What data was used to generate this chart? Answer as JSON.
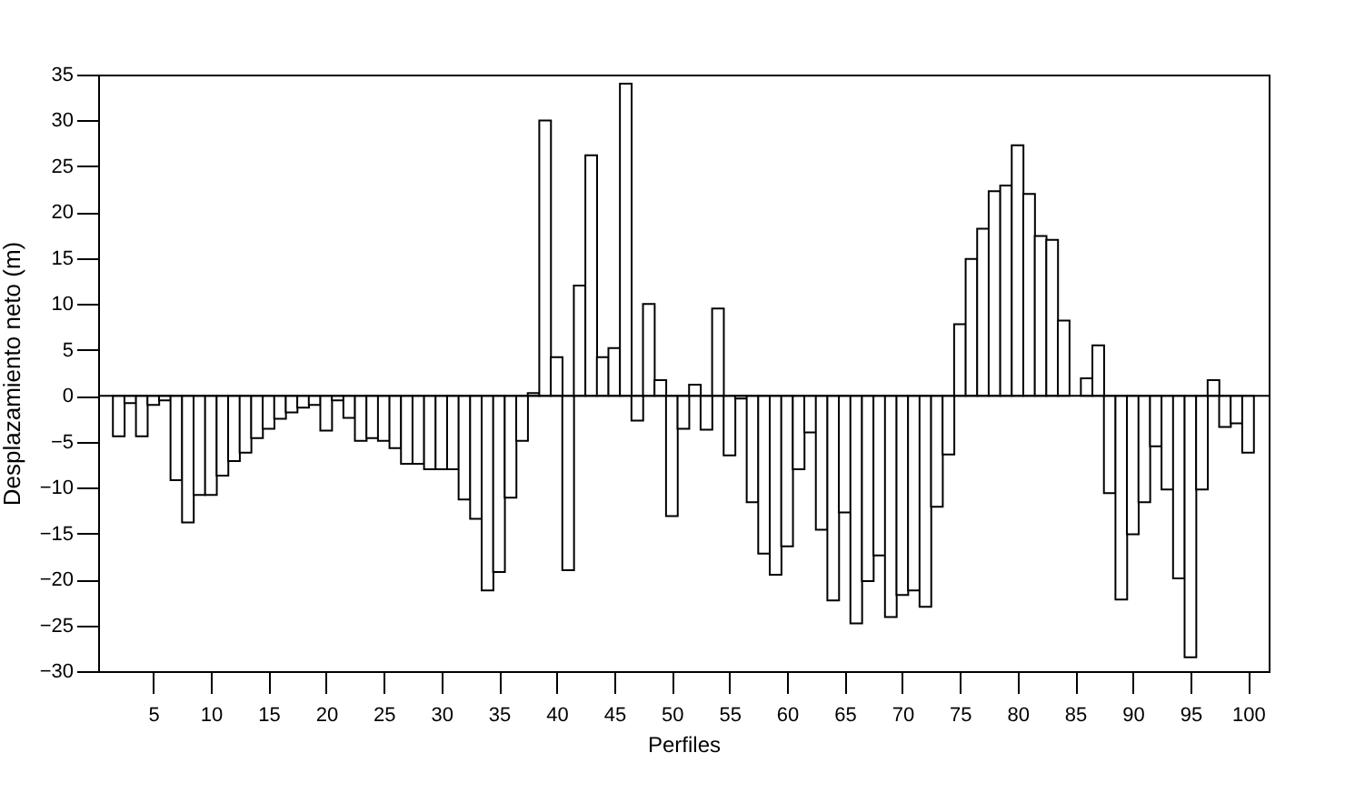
{
  "chart_data": {
    "type": "bar",
    "xlabel": "Perfiles",
    "ylabel": "Desplazamiento neto (m)",
    "x": [
      2,
      3,
      4,
      5,
      6,
      7,
      8,
      9,
      10,
      11,
      12,
      13,
      14,
      15,
      16,
      17,
      18,
      19,
      20,
      21,
      22,
      23,
      24,
      25,
      26,
      27,
      28,
      29,
      30,
      31,
      32,
      33,
      34,
      35,
      36,
      37,
      38,
      39,
      40,
      41,
      42,
      43,
      44,
      45,
      46,
      47,
      48,
      49,
      50,
      51,
      52,
      53,
      54,
      55,
      56,
      57,
      58,
      59,
      60,
      61,
      62,
      63,
      64,
      65,
      66,
      67,
      68,
      69,
      70,
      71,
      72,
      73,
      74,
      75,
      76,
      77,
      78,
      79,
      80,
      81,
      82,
      83,
      84,
      85,
      86,
      87,
      88,
      89,
      90,
      91,
      92,
      93,
      94,
      95,
      96,
      97,
      98,
      99,
      100
    ],
    "values": [
      -4.4,
      -0.8,
      -4.4,
      -1,
      -0.5,
      -9.2,
      -13.8,
      -10.8,
      -10.8,
      -8.7,
      -7.1,
      -6.2,
      -4.6,
      -3.6,
      -2.5,
      -1.8,
      -1.3,
      -1,
      -3.8,
      -0.5,
      -2.4,
      -4.9,
      -4.6,
      -4.9,
      -5.7,
      -7.4,
      -7.4,
      -8,
      -8,
      -8,
      -11.3,
      -13.4,
      -21.2,
      -19.2,
      -11.1,
      -4.9,
      0.3,
      30,
      4.2,
      -19,
      12,
      26.2,
      4.2,
      5.2,
      34,
      -2.7,
      10,
      1.7,
      -13.1,
      -3.6,
      1.2,
      -3.7,
      9.5,
      -6.5,
      -0.3,
      -11.6,
      -17.2,
      -19.5,
      -16.4,
      -8,
      -4,
      -14.6,
      -22.3,
      -12.7,
      -24.8,
      -20.2,
      -17.4,
      -24.1,
      -21.7,
      -21.2,
      -23,
      -12.1,
      -6.4,
      7.8,
      14.9,
      18.2,
      22.3,
      22.9,
      27.3,
      22,
      17.4,
      17,
      8.2,
      null,
      1.9,
      5.5,
      -10.6,
      -22.2,
      -15.1,
      -11.6,
      -5.5,
      -10.2,
      -19.9,
      -28.5,
      -10.2,
      1.7,
      -3.4,
      -3,
      -6.2
    ],
    "color": "#ffffff",
    "xlim": [
      1,
      101
    ],
    "xticks": [
      5,
      10,
      15,
      20,
      25,
      30,
      35,
      40,
      45,
      50,
      55,
      60,
      65,
      70,
      75,
      80,
      85,
      90,
      95,
      100
    ],
    "ylim": [
      -30,
      35
    ],
    "yticks": [
      -30,
      -25,
      -20,
      -15,
      -10,
      -5,
      0,
      5,
      10,
      15,
      20,
      25,
      30,
      35
    ],
    "ref_lines": [
      {
        "axis": "y",
        "value": 0
      }
    ],
    "grid": false
  }
}
